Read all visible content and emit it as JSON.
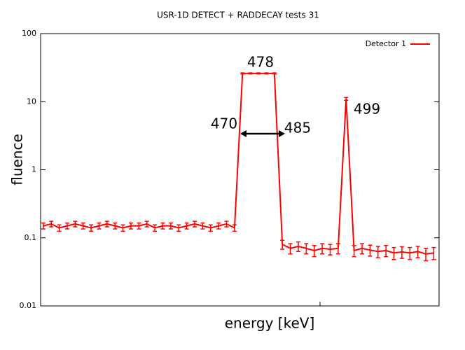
{
  "chart_data": {
    "type": "line",
    "title": "USR-1D DETECT + RADDECAY tests 31",
    "x_label": "energy [keV]",
    "y_label": "fluence",
    "log_y": true,
    "xlim": [
      394,
      544
    ],
    "ylim": [
      0.01,
      100
    ],
    "yticks": [
      0.01,
      0.1,
      1,
      10,
      100
    ],
    "legend": "top-right",
    "x": [
      395,
      398,
      401,
      404,
      407,
      410,
      413,
      416,
      419,
      422,
      425,
      428,
      431,
      434,
      437,
      440,
      443,
      446,
      449,
      452,
      455,
      458,
      461,
      464,
      467,
      470,
      473,
      476,
      479,
      482,
      485,
      488,
      491,
      494,
      497,
      500,
      503,
      506,
      509,
      512,
      515,
      518,
      521,
      524,
      527,
      530,
      533,
      536,
      539,
      542
    ],
    "series": [
      {
        "name": "Detector 1",
        "color": "#ff0000",
        "values": [
          0.15,
          0.16,
          0.14,
          0.15,
          0.16,
          0.15,
          0.14,
          0.15,
          0.16,
          0.15,
          0.14,
          0.15,
          0.15,
          0.16,
          0.14,
          0.15,
          0.15,
          0.14,
          0.15,
          0.16,
          0.15,
          0.14,
          0.15,
          0.16,
          0.14,
          26,
          26,
          26,
          26,
          26,
          0.08,
          0.07,
          0.075,
          0.07,
          0.065,
          0.07,
          0.068,
          0.07,
          11,
          0.065,
          0.07,
          0.066,
          0.063,
          0.065,
          0.06,
          0.062,
          0.06,
          0.063,
          0.058,
          0.06
        ],
        "errors": [
          0.015,
          0.015,
          0.015,
          0.015,
          0.015,
          0.015,
          0.015,
          0.015,
          0.015,
          0.015,
          0.015,
          0.015,
          0.015,
          0.015,
          0.015,
          0.015,
          0.015,
          0.015,
          0.015,
          0.015,
          0.015,
          0.015,
          0.015,
          0.015,
          0.015,
          0.5,
          0.5,
          0.5,
          0.5,
          0.5,
          0.012,
          0.012,
          0.012,
          0.012,
          0.012,
          0.012,
          0.012,
          0.012,
          0.5,
          0.012,
          0.012,
          0.012,
          0.012,
          0.012,
          0.012,
          0.012,
          0.012,
          0.012,
          0.012,
          0.012
        ]
      }
    ],
    "annotations": [
      "478",
      "470",
      "485",
      "499"
    ]
  }
}
